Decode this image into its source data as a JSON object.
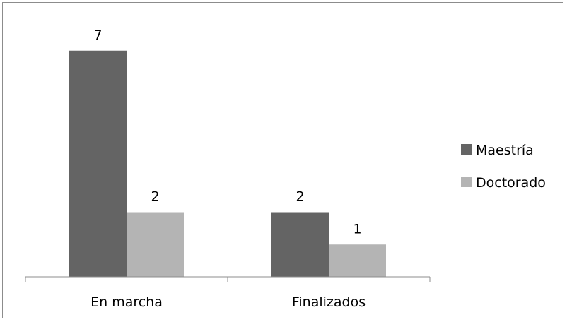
{
  "chart_data": {
    "type": "bar",
    "categories": [
      "En marcha",
      "Finalizados"
    ],
    "series": [
      {
        "name": "Maestría",
        "values": [
          7,
          2
        ],
        "color": "#646464"
      },
      {
        "name": "Doctorado",
        "values": [
          2,
          1
        ],
        "color": "#b4b4b4"
      }
    ],
    "data_labels": true,
    "ylim": [
      0,
      8
    ],
    "grid": false,
    "y_axis_visible": false,
    "legend_position": "right"
  }
}
